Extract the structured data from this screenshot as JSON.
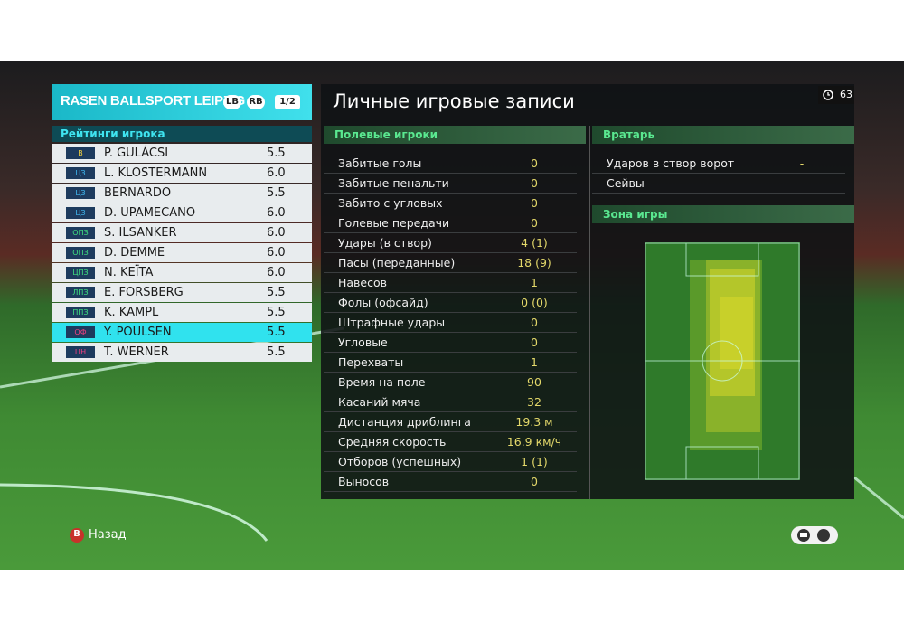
{
  "header": {
    "team": "RASEN BALLSPORT LEIPZIG",
    "left_button": "LB",
    "right_button": "RB",
    "page": "1/2",
    "title": "Личные игровые записи",
    "timer": "63"
  },
  "players": {
    "title": "Рейтинги игрока",
    "rows": [
      {
        "pos": "В",
        "name": "P. GULÁCSI",
        "rating": "5.5"
      },
      {
        "pos": "ЦЗ",
        "name": "L. KLOSTERMANN",
        "rating": "6.0"
      },
      {
        "pos": "ЦЗ",
        "name": "BERNARDO",
        "rating": "5.5"
      },
      {
        "pos": "ЦЗ",
        "name": "D. UPAMECANO",
        "rating": "6.0"
      },
      {
        "pos": "ОПЗ",
        "name": "S. ILSANKER",
        "rating": "6.0"
      },
      {
        "pos": "ОПЗ",
        "name": "D. DEMME",
        "rating": "6.0"
      },
      {
        "pos": "ЦПЗ",
        "name": "N. KEÏTA",
        "rating": "6.0"
      },
      {
        "pos": "ЛПЗ",
        "name": "E. FORSBERG",
        "rating": "5.5"
      },
      {
        "pos": "ППЗ",
        "name": "K. KAMPL",
        "rating": "5.5"
      },
      {
        "pos": "ОФ",
        "name": "Y. POULSEN",
        "rating": "5.5"
      },
      {
        "pos": "ЦН",
        "name": "T. WERNER",
        "rating": "5.5"
      }
    ]
  },
  "field_stats": {
    "title": "Полевые игроки",
    "rows": [
      [
        "Забитые голы",
        "0"
      ],
      [
        "Забитые пенальти",
        "0"
      ],
      [
        "Забито с угловых",
        "0"
      ],
      [
        "Голевые передачи",
        "0"
      ],
      [
        "Удары (в створ)",
        "4 (1)"
      ],
      [
        "Пасы (переданные)",
        "18 (9)"
      ],
      [
        "Навесов",
        "1"
      ],
      [
        "Фолы (офсайд)",
        "0 (0)"
      ],
      [
        "Штрафные удары",
        "0"
      ],
      [
        "Угловые",
        "0"
      ],
      [
        "Перехваты",
        "1"
      ],
      [
        "Время на поле",
        "90"
      ],
      [
        "Касаний мяча",
        "32"
      ],
      [
        "Дистанция дриблинга",
        "19.3 м"
      ],
      [
        "Средняя скорость",
        "16.9 км/ч"
      ],
      [
        "Отборов (успешных)",
        "1 (1)"
      ],
      [
        "Выносов",
        "0"
      ]
    ]
  },
  "goalkeeper": {
    "title": "Вратарь",
    "rows": [
      [
        "Ударов в створ ворот",
        "-"
      ],
      [
        "Сейвы",
        "-"
      ]
    ]
  },
  "zone": {
    "title": "Зона игры"
  },
  "footer": {
    "button": "B",
    "back": "Назад"
  }
}
